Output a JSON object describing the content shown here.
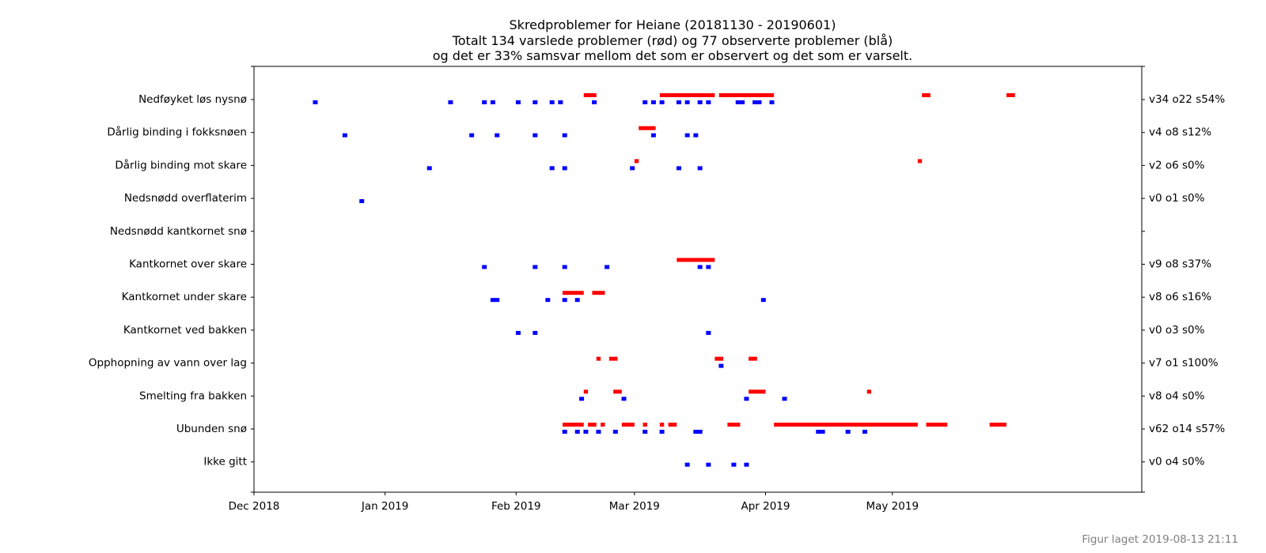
{
  "chart_data": {
    "type": "scatter",
    "title_lines": [
      "Skredproblemer for Heiane (20181130 - 20190601)",
      "Totalt 134 varslede problemer (rød) og 77 observerte problemer (blå)",
      "og det er 33% samsvar mellom det som er observert og det som er varselt."
    ],
    "xlim": [
      "2018-12-01",
      "2019-06-29"
    ],
    "x_ticks": [
      {
        "date": "2018-12-01",
        "label": "Dec 2018"
      },
      {
        "date": "2019-01-01",
        "label": "Jan 2019"
      },
      {
        "date": "2019-02-01",
        "label": "Feb 2019"
      },
      {
        "date": "2019-03-01",
        "label": "Mar 2019"
      },
      {
        "date": "2019-04-01",
        "label": "Apr 2019"
      },
      {
        "date": "2019-05-01",
        "label": "May 2019"
      }
    ],
    "grid": false,
    "series": [
      {
        "key": "varslet",
        "color": "#ff0000"
      },
      {
        "key": "observert",
        "color": "#0000ff"
      }
    ],
    "categories": [
      {
        "label": "Nedføyket løs nysnø",
        "right_label": "v34 o22 s54%",
        "varslet": [
          [
            "2019-02-17",
            "2019-02-19"
          ],
          [
            "2019-03-07",
            "2019-03-19"
          ],
          [
            "2019-03-21",
            "2019-04-02"
          ],
          [
            "2019-05-08",
            "2019-05-09"
          ],
          [
            "2019-05-28",
            "2019-05-29"
          ]
        ],
        "observert": [
          "2018-12-15",
          "2019-01-16",
          "2019-01-24",
          "2019-01-26",
          "2019-02-01",
          "2019-02-05",
          "2019-02-09",
          "2019-02-11",
          "2019-02-19",
          "2019-03-03",
          "2019-03-05",
          "2019-03-07",
          "2019-03-11",
          "2019-03-13",
          "2019-03-16",
          "2019-03-18",
          "2019-03-25",
          "2019-03-26",
          "2019-03-29",
          "2019-03-30",
          "2019-04-02"
        ]
      },
      {
        "label": "Dårlig binding i fokksnøen",
        "right_label": "v4 o8 s12%",
        "varslet": [
          [
            "2019-03-02",
            "2019-03-05"
          ]
        ],
        "observert": [
          "2018-12-22",
          "2019-01-21",
          "2019-01-27",
          "2019-02-05",
          "2019-02-12",
          "2019-03-05",
          "2019-03-13",
          "2019-03-15"
        ]
      },
      {
        "label": "Dårlig binding mot skare",
        "right_label": "v2 o6 s0%",
        "varslet": [
          [
            "2019-03-01",
            "2019-03-01"
          ],
          [
            "2019-05-07",
            "2019-05-07"
          ]
        ],
        "observert": [
          "2019-01-11",
          "2019-02-09",
          "2019-02-12",
          "2019-02-28",
          "2019-03-11",
          "2019-03-16"
        ]
      },
      {
        "label": "Nedsnødd overflaterim",
        "right_label": "v0 o1 s0%",
        "varslet": [],
        "observert": [
          "2018-12-26"
        ]
      },
      {
        "label": "Nedsnødd kantkornet snø",
        "right_label": "",
        "varslet": [],
        "observert": []
      },
      {
        "label": "Kantkornet over skare",
        "right_label": "v9 o8 s37%",
        "varslet": [
          [
            "2019-03-11",
            "2019-03-19"
          ]
        ],
        "observert": [
          "2019-01-24",
          "2019-02-05",
          "2019-02-12",
          "2019-02-22",
          "2019-03-16",
          "2019-03-18"
        ]
      },
      {
        "label": "Kantkornet under skare",
        "right_label": "v8 o6 s16%",
        "varslet": [
          [
            "2019-02-12",
            "2019-02-16"
          ],
          [
            "2019-02-19",
            "2019-02-21"
          ]
        ],
        "observert": [
          "2019-01-26",
          "2019-01-27",
          "2019-02-08",
          "2019-02-12",
          "2019-02-15",
          "2019-03-31"
        ]
      },
      {
        "label": "Kantkornet ved bakken",
        "right_label": "v0 o3 s0%",
        "varslet": [],
        "observert": [
          "2019-02-01",
          "2019-02-05",
          "2019-03-18"
        ]
      },
      {
        "label": "Opphopning av vann over lag",
        "right_label": "v7 o1 s100%",
        "varslet": [
          [
            "2019-02-20",
            "2019-02-20"
          ],
          [
            "2019-02-23",
            "2019-02-24"
          ],
          [
            "2019-03-20",
            "2019-03-21"
          ],
          [
            "2019-03-28",
            "2019-03-29"
          ]
        ],
        "observert": [
          "2019-03-21"
        ]
      },
      {
        "label": "Smelting fra bakken",
        "right_label": "v8 o4 s0%",
        "varslet": [
          [
            "2019-02-17",
            "2019-02-17"
          ],
          [
            "2019-02-24",
            "2019-02-25"
          ],
          [
            "2019-03-28",
            "2019-03-31"
          ],
          [
            "2019-04-25",
            "2019-04-25"
          ]
        ],
        "observert": [
          "2019-02-16",
          "2019-02-26",
          "2019-03-27",
          "2019-04-05"
        ]
      },
      {
        "label": "Ubunden snø",
        "right_label": "v62 o14 s57%",
        "varslet": [
          [
            "2019-02-12",
            "2019-02-16"
          ],
          [
            "2019-02-18",
            "2019-02-19"
          ],
          [
            "2019-02-21",
            "2019-02-21"
          ],
          [
            "2019-02-26",
            "2019-02-28"
          ],
          [
            "2019-03-03",
            "2019-03-03"
          ],
          [
            "2019-03-07",
            "2019-03-07"
          ],
          [
            "2019-03-09",
            "2019-03-10"
          ],
          [
            "2019-03-23",
            "2019-03-25"
          ],
          [
            "2019-04-03",
            "2019-05-06"
          ],
          [
            "2019-05-09",
            "2019-05-13"
          ],
          [
            "2019-05-24",
            "2019-05-27"
          ]
        ],
        "observert": [
          "2019-02-12",
          "2019-02-15",
          "2019-02-17",
          "2019-02-20",
          "2019-02-24",
          "2019-03-03",
          "2019-03-07",
          "2019-03-15",
          "2019-03-16",
          "2019-04-13",
          "2019-04-14",
          "2019-04-20",
          "2019-04-24"
        ]
      },
      {
        "label": "Ikke gitt",
        "right_label": "v0 o4 s0%",
        "varslet": [],
        "observert": [
          "2019-03-13",
          "2019-03-18",
          "2019-03-24",
          "2019-03-27"
        ]
      }
    ]
  },
  "footer": "Figur laget 2019-08-13 21:11"
}
